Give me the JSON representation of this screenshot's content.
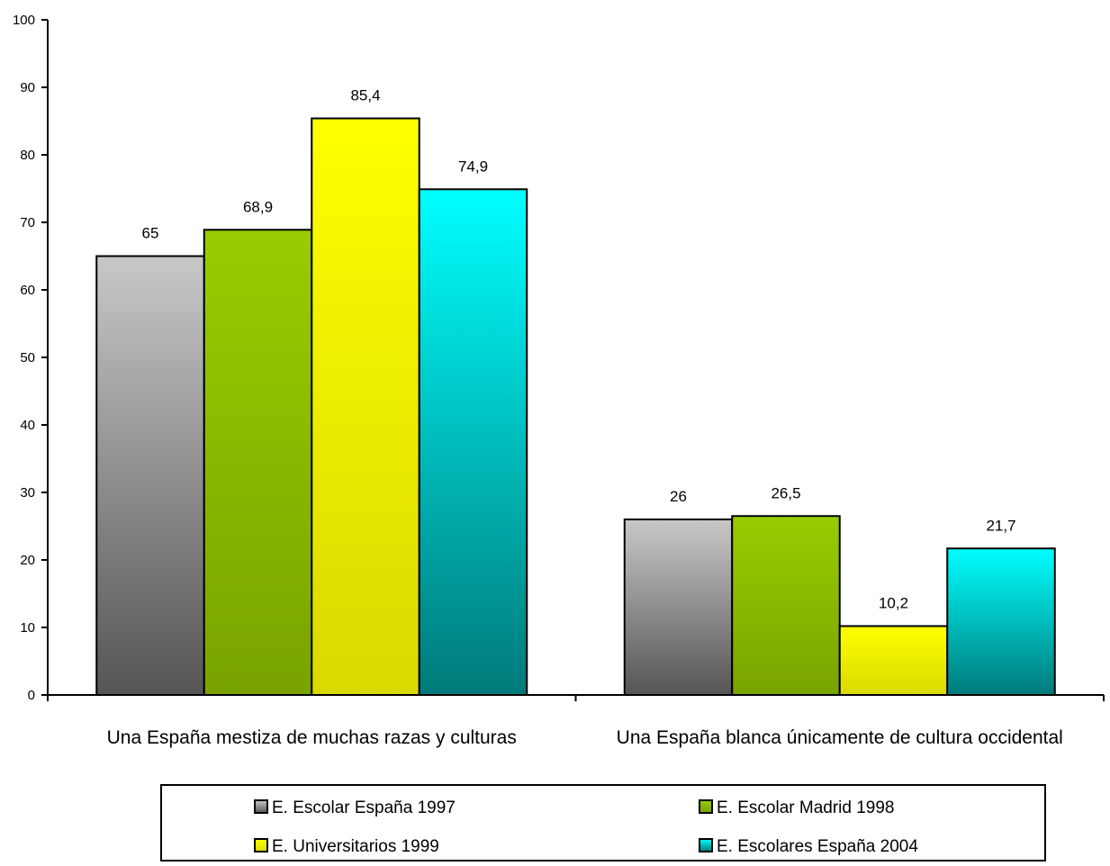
{
  "chart_data": {
    "type": "bar",
    "title": "",
    "xlabel": "",
    "ylabel": "",
    "ylim": [
      0,
      100
    ],
    "yticks": [
      "0",
      "10",
      "20",
      "30",
      "40",
      "50",
      "60",
      "70",
      "80",
      "90",
      "100"
    ],
    "grid": false,
    "legend_position": "bottom",
    "categories": [
      "Una España mestiza de muchas razas y culturas",
      "Una España blanca únicamente de cultura occidental"
    ],
    "series": [
      {
        "name": "E. Escolar España 1997",
        "values": [
          65,
          26
        ],
        "labels": [
          "65",
          "26"
        ],
        "color_top": "#c8c8c8",
        "color_bottom": "#555555"
      },
      {
        "name": "E. Escolar Madrid 1998",
        "values": [
          68.9,
          26.5
        ],
        "labels": [
          "68,9",
          "26,5"
        ],
        "color_top": "#99cc00",
        "color_bottom": "#7aa300"
      },
      {
        "name": "E. Universitarios 1999",
        "values": [
          85.4,
          10.2
        ],
        "labels": [
          "85,4",
          "10,2"
        ],
        "color_top": "#ffff00",
        "color_bottom": "#d9d900"
      },
      {
        "name": "E. Escolares España 2004",
        "values": [
          74.9,
          21.7
        ],
        "labels": [
          "74,9",
          "21,7"
        ],
        "color_top": "#00ffff",
        "color_bottom": "#007a7a"
      }
    ]
  }
}
